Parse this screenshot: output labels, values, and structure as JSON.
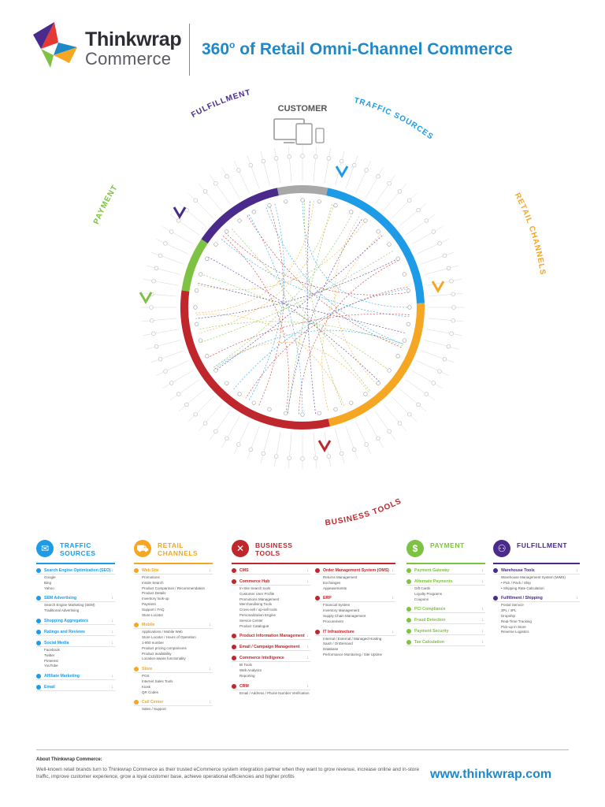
{
  "brand": {
    "name": "Thinkwrap",
    "sub": "Commerce"
  },
  "title": {
    "main": "360",
    "sup": "o",
    "rest": " of Retail Omni-Channel Commerce"
  },
  "wheel": {
    "center_label": "CUSTOMER",
    "segments": [
      {
        "key": "traffic",
        "label": "TRAFFIC SOURCES",
        "color": "#1e9be6"
      },
      {
        "key": "retail",
        "label": "RETAIL CHANNELS",
        "color": "#f5a623"
      },
      {
        "key": "business",
        "label": "BUSINESS TOOLS",
        "color": "#c0272d"
      },
      {
        "key": "payment",
        "label": "PAYMENT",
        "color": "#7dc242"
      },
      {
        "key": "fulfillment",
        "label": "FULFILLMENT",
        "color": "#4a2a8a"
      }
    ]
  },
  "columns": [
    {
      "key": "traffic",
      "title": "TRAFFIC SOURCES",
      "color": "#1e9be6",
      "icon": "megaphone-icon",
      "glyph": "✉",
      "groups": [
        {
          "h": "Search Engine Optimization (SEO)",
          "items": [
            "Google",
            "Bing",
            "Yahoo"
          ]
        },
        {
          "h": "SEM Advertising",
          "items": [
            "Search Engine Marketing (SEM)",
            "Traditional Advertising"
          ]
        },
        {
          "h": "Shopping Aggregators",
          "items": []
        },
        {
          "h": "Ratings and Reviews",
          "items": []
        },
        {
          "h": "Social Media",
          "items": [
            "Facebook",
            "Twitter",
            "Pinterest",
            "YouTube"
          ]
        },
        {
          "h": "Affiliate Marketing",
          "items": []
        },
        {
          "h": "Email",
          "items": []
        }
      ]
    },
    {
      "key": "retail",
      "title": "RETAIL CHANNELS",
      "color": "#f5a623",
      "icon": "cart-icon",
      "glyph": "⛟",
      "groups": [
        {
          "h": "Web Site",
          "items": [
            "Promotions",
            "Inside Search",
            "Product Comparison / Recommendation",
            "Product Details",
            "Inventory look-up",
            "Payment",
            "Support / FAQ",
            "Store Locator"
          ]
        },
        {
          "h": "Mobile",
          "items": [
            "Applications / Mobile Web",
            "Store Locator / Hours of Operation",
            "1-800 number",
            "Product pricing comparisons",
            "Product availability",
            "Location-aware functionality"
          ]
        },
        {
          "h": "Store",
          "items": [
            "POS",
            "Internet Sales Tools",
            "Kiosk",
            "QR Codes"
          ]
        },
        {
          "h": "Call Center",
          "items": [
            "Sales / Support"
          ]
        }
      ]
    },
    {
      "key": "business",
      "title": "BUSINESS TOOLS",
      "color": "#c0272d",
      "icon": "tools-icon",
      "glyph": "✕",
      "groups_left": [
        {
          "h": "CMS",
          "items": []
        },
        {
          "h": "Commerce Hub",
          "items": [
            "In-Site Search tools",
            "Customer User Profile",
            "Promotions Management",
            "Merchandising Tools",
            "Cross-sell / up-sell tools",
            "Personalization Engine",
            "Service Center",
            "Product Catalogue"
          ]
        },
        {
          "h": "Product Information Management",
          "items": []
        },
        {
          "h": "Email / Campaign Management",
          "items": []
        },
        {
          "h": "Commerce Intelligence",
          "items": [
            "BI Tools",
            "Web Analytics",
            "Reporting"
          ]
        },
        {
          "h": "CRM",
          "items": [
            "Email / Address / Phone Number Verification"
          ]
        }
      ],
      "groups_right": [
        {
          "h": "Order Management System (OMS)",
          "items": [
            "Returns Management",
            "Exchanges",
            "Appeasements"
          ]
        },
        {
          "h": "ERP",
          "items": [
            "Financial System",
            "Inventory Management",
            "Supply Chain Management",
            "Procurement"
          ]
        },
        {
          "h": "IT Infrastructure",
          "items": [
            "Internal / External / Managed Hosting",
            "SaaS / OnDemand",
            "Database",
            "Performance Monitoring / Site Uptime"
          ]
        }
      ]
    },
    {
      "key": "payment",
      "title": "PAYMENT",
      "color": "#7dc242",
      "icon": "dollar-icon",
      "glyph": "$",
      "groups": [
        {
          "h": "Payment Gateway",
          "items": []
        },
        {
          "h": "Alternate Payments",
          "items": [
            "Gift Cards",
            "Loyalty Programs",
            "Coupons"
          ]
        },
        {
          "h": "PCI Compliance",
          "items": []
        },
        {
          "h": "Fraud Detection",
          "items": []
        },
        {
          "h": "Payment Security",
          "items": []
        },
        {
          "h": "Tax Calculation",
          "items": []
        }
      ]
    },
    {
      "key": "fulfillment",
      "title": "FULFILLMENT",
      "color": "#4a2a8a",
      "icon": "truck-icon",
      "glyph": "⚇",
      "groups": [
        {
          "h": "Warehouse Tools",
          "items": [
            "Warehouse Management System (WMS)",
            "• Pick / Pack / Ship",
            "• Shipping Rate Calculation"
          ]
        },
        {
          "h": "Fulfillment / Shipping",
          "items": [
            "Postal Service",
            "3PL / 4PL",
            "Dropship",
            "Real-Time Tracking",
            "Pick-up in Store",
            "Reverse Logistics"
          ]
        }
      ]
    }
  ],
  "footer": {
    "about_h": "About Thinkwrap Commerce:",
    "about_t": "Well-known retail brands turn to Thinkwrap Commerce as their trusted eCommerce system integration partner when they want to grow revenue, increase online and in-store traffic, improve customer experience, grow a loyal customer base, achieve operational efficiencies and higher profits",
    "site": "www.thinkwrap.com"
  }
}
